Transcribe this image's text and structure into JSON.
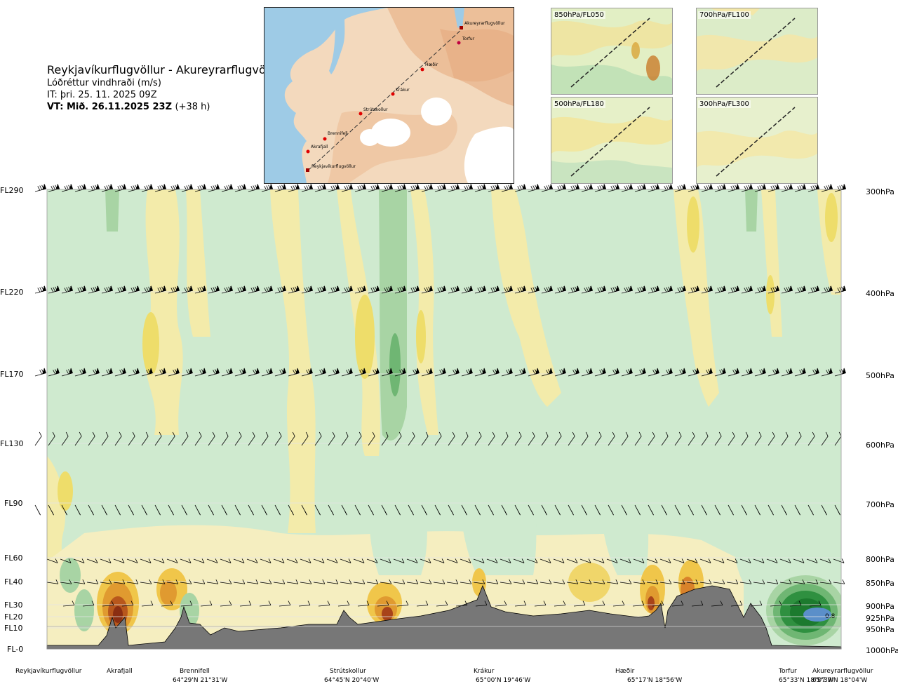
{
  "header": {
    "title": "Reykjavíkurflugvöllur - Akureyrarflugvöllur",
    "subtitle": "Lóðréttur vindhraði (m/s)",
    "issue_time": "IT: þri. 25. 11. 2025 09Z",
    "valid_time": "VT: Mið. 26.11.2025 23Z",
    "lead_time": "(+38 h)"
  },
  "map": {
    "waypoints": [
      "Akureyrarflugvöllur",
      "Torfur",
      "Hæðir",
      "Krákur",
      "Strútskollur",
      "Brennifell",
      "Akrafjall",
      "Reykjavíkurflugvöllur"
    ]
  },
  "insets": [
    {
      "label": "850hPa/FL050"
    },
    {
      "label": "700hPa/FL100"
    },
    {
      "label": "500hPa/FL180"
    },
    {
      "label": "300hPa/FL300"
    }
  ],
  "colors": {
    "strong_up_positive": "#a0451a",
    "up_positive": "#f0e3a0",
    "down_negative": "#cde9cc",
    "strong_down_negative": "#2a8a3a",
    "terrain": "#7a7a7a",
    "blue_core": "#5b8fc9"
  },
  "chart_data": {
    "type": "heatmap",
    "description_units": "m/s",
    "y_left_ticks": [
      "FL290",
      "FL220",
      "FL170",
      "FL130",
      "FL90",
      "FL60",
      "FL40",
      "FL30",
      "FL20",
      "FL10",
      "FL-0"
    ],
    "y_right_ticks": [
      "300hPa",
      "400hPa",
      "500hPa",
      "600hPa",
      "700hPa",
      "800hPa",
      "850hPa",
      "900hPa",
      "925hPa",
      "950hPa",
      "1000hPa"
    ],
    "pressure_levels_hpa": [
      300,
      400,
      500,
      600,
      700,
      800,
      850,
      900,
      925,
      950,
      1000
    ],
    "x_points": [
      {
        "name": "Reykjavíkurflugvöllur",
        "coords": ""
      },
      {
        "name": "Akrafjall",
        "coords": ""
      },
      {
        "name": "Brennifell",
        "coords": "64°29'N 21°31'W"
      },
      {
        "name": "Strútskollur",
        "coords": "64°45'N 20°40'W"
      },
      {
        "name": "Krákur",
        "coords": "65°00'N 19°46'W"
      },
      {
        "name": "Hæðir",
        "coords": "65°17'N 18°56'W"
      },
      {
        "name": "Torfur",
        "coords": "65°33'N 18°07'W"
      },
      {
        "name": "Akureyrarflugvöllur",
        "coords": "65°39'N 18°04'W"
      }
    ],
    "annotations": [
      "0.8"
    ]
  }
}
